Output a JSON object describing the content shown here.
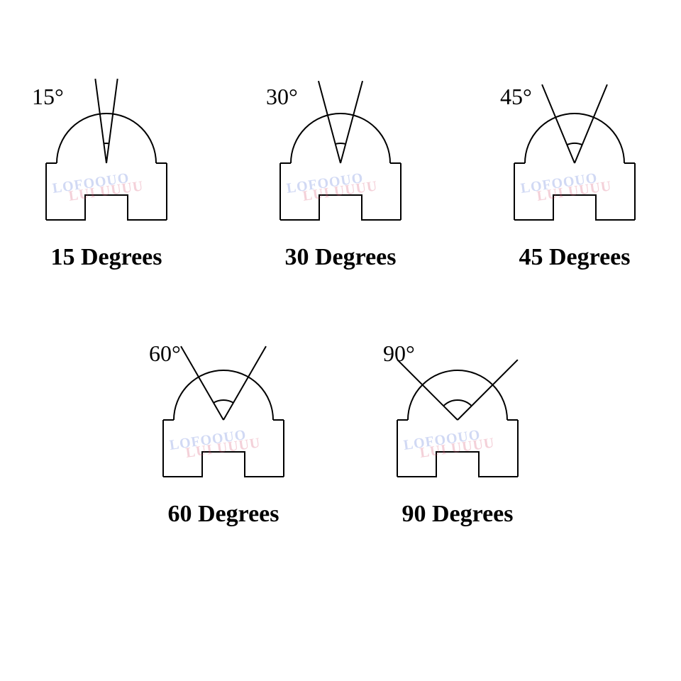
{
  "figure": {
    "type": "diagram",
    "background_color": "#ffffff",
    "stroke_color": "#000000",
    "stroke_width": 2,
    "caption_fontsize": 34,
    "caption_fontweight": "bold",
    "label_fontsize": 32,
    "font_family": "Times New Roman",
    "watermark_text_top": "LOFOOUO",
    "watermark_text_bottom": "LUI UUUU",
    "watermark_color_top": "#4a6bd6",
    "watermark_color_bottom": "#d64a6b",
    "watermark_opacity": 0.25,
    "dome_radius": 70,
    "base_width": 170,
    "base_height": 80,
    "notch_width": 60,
    "notch_height": 35,
    "ray_length": 120,
    "arc_label_radius": 28,
    "items": [
      {
        "angle_deg": 15,
        "angle_label": "15°",
        "caption": "15 Degrees"
      },
      {
        "angle_deg": 30,
        "angle_label": "30°",
        "caption": "30 Degrees"
      },
      {
        "angle_deg": 45,
        "angle_label": "45°",
        "caption": "45 Degrees"
      },
      {
        "angle_deg": 60,
        "angle_label": "60°",
        "caption": "60 Degrees"
      },
      {
        "angle_deg": 90,
        "angle_label": "90°",
        "caption": "90 Degrees"
      }
    ],
    "layout": {
      "rows": [
        [
          0,
          1,
          2
        ],
        [
          3,
          4
        ]
      ]
    }
  }
}
